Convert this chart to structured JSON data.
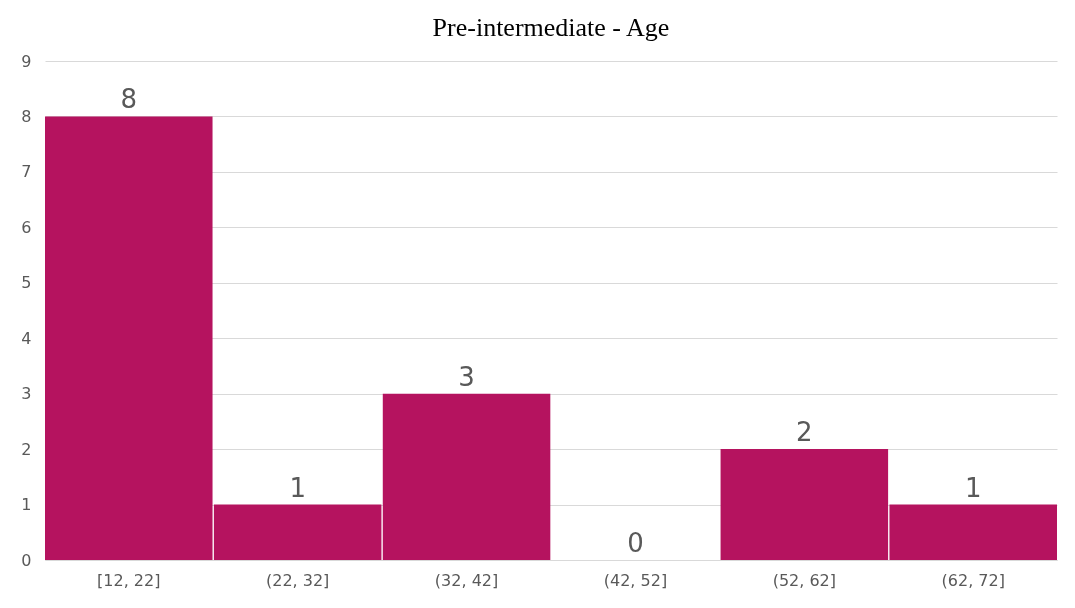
{
  "chart_data": {
    "type": "bar",
    "title": "Pre-intermediate - Age",
    "categories": [
      "[12, 22]",
      "(22, 32]",
      "(32, 42]",
      "(42, 52]",
      "(52, 62]",
      "(62, 72]"
    ],
    "values": [
      8,
      1,
      3,
      0,
      2,
      1
    ],
    "color": "#b5135f",
    "ylim": [
      0,
      9
    ],
    "yticks": [
      0,
      1,
      2,
      3,
      4,
      5,
      6,
      7,
      8,
      9
    ],
    "grid": "y",
    "data_labels": true
  }
}
